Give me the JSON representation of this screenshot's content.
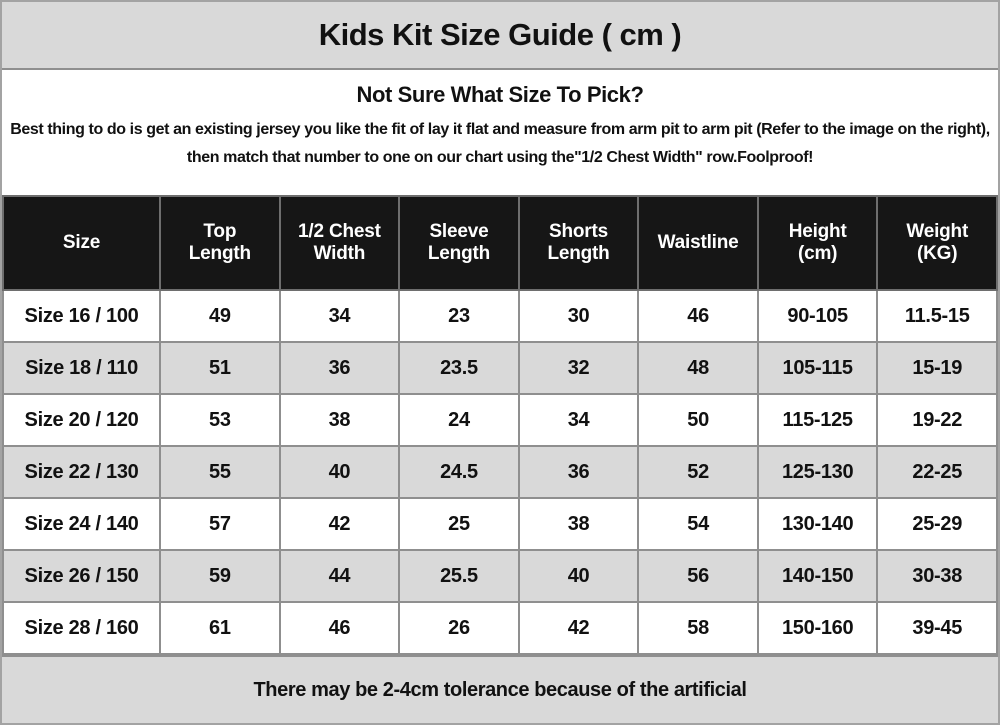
{
  "title": "Kids Kit Size Guide ( cm )",
  "intro": {
    "heading": "Not Sure What Size To Pick?",
    "body": "Best thing to do is get an existing jersey you like the fit of lay it flat and measure from arm pit to arm pit (Refer to the image on the right), then match that number to one on our chart using the\"1/2 Chest Width\" row.Foolproof!"
  },
  "chart_data": {
    "type": "table",
    "title": "Kids Kit Size Guide ( cm )",
    "columns": [
      "Size",
      "Top Length",
      "1/2 Chest Width",
      "Sleeve Length",
      "Shorts Length",
      "Waistline",
      "Height (cm)",
      "Weight (KG)"
    ],
    "rows": [
      [
        "Size 16 / 100",
        "49",
        "34",
        "23",
        "30",
        "46",
        "90-105",
        "11.5-15"
      ],
      [
        "Size 18 / 110",
        "51",
        "36",
        "23.5",
        "32",
        "48",
        "105-115",
        "15-19"
      ],
      [
        "Size 20 / 120",
        "53",
        "38",
        "24",
        "34",
        "50",
        "115-125",
        "19-22"
      ],
      [
        "Size 22 / 130",
        "55",
        "40",
        "24.5",
        "36",
        "52",
        "125-130",
        "22-25"
      ],
      [
        "Size 24 / 140",
        "57",
        "42",
        "25",
        "38",
        "54",
        "130-140",
        "25-29"
      ],
      [
        "Size 26 / 150",
        "59",
        "44",
        "25.5",
        "40",
        "56",
        "140-150",
        "30-38"
      ],
      [
        "Size 28 / 160",
        "61",
        "46",
        "26",
        "42",
        "58",
        "150-160",
        "39-45"
      ]
    ],
    "footnote": "There may be 2-4cm tolerance because of the artificial"
  },
  "colors": {
    "band_gray": "#d9d9d9",
    "header_bg": "#161616",
    "header_text": "#ffffff",
    "grid_line": "#8f8f8f",
    "text": "#111111"
  }
}
